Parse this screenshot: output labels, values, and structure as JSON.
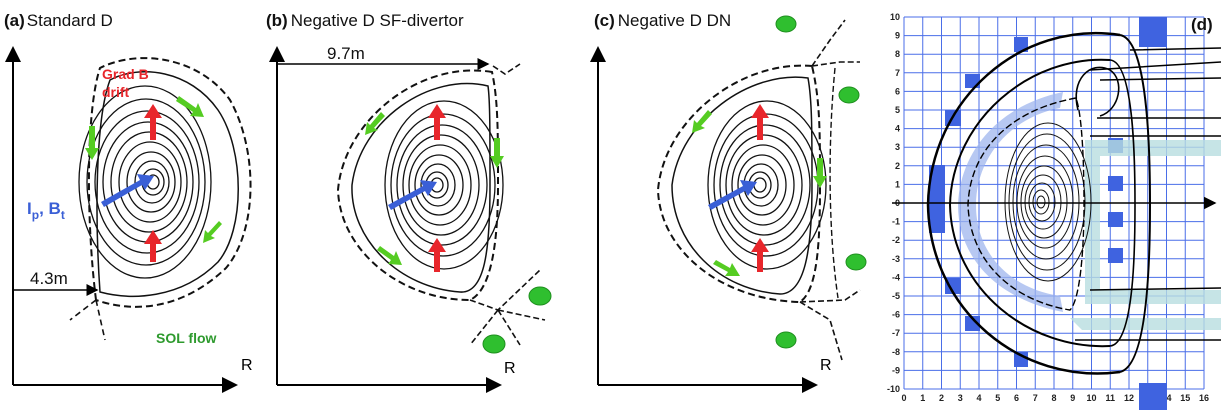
{
  "panels": {
    "a": {
      "letter": "(a)",
      "title": "Standard D",
      "dim": "4.3m",
      "grad_b_line1": "Grad B",
      "grad_b_line2": "drift",
      "ip_main": "I",
      "ip_sub": "p",
      "bt_main": ", B",
      "bt_sub": "t",
      "sol": "SOL flow",
      "axis_r": "R"
    },
    "b": {
      "letter": "(b)",
      "title": "Negative D  SF-divertor",
      "dim": "9.7m",
      "axis_r": "R"
    },
    "c": {
      "letter": "(c)",
      "title": "Negative D DN",
      "axis_r": "R"
    },
    "d": {
      "letter": "(d)",
      "y_ticks": [
        "10",
        "9",
        "8",
        "7",
        "6",
        "5",
        "4",
        "3",
        "2",
        "1",
        "0",
        "-1",
        "-2",
        "-3",
        "-4",
        "-5",
        "-6",
        "-7",
        "-8",
        "-9",
        "-10"
      ],
      "x_ticks": [
        "0",
        "1",
        "2",
        "3",
        "4",
        "5",
        "6",
        "7",
        "8",
        "9",
        "10",
        "11",
        "12",
        "13",
        "14",
        "15",
        "16"
      ]
    }
  },
  "colors": {
    "grad_b": "#e8262b",
    "ip_arrow": "#3a5fd6",
    "sol": "#2e9a2e",
    "green_arrow": "#55cc22",
    "green_dot": "#2fbf2f",
    "coil": "#3f63e0",
    "grid": "#4a6ee8",
    "flow_band": "#9fb6ee",
    "cyan_band": "#b8dde0"
  },
  "icons": {
    "arrow": "arrow-icon",
    "dot": "green-blob-icon"
  }
}
